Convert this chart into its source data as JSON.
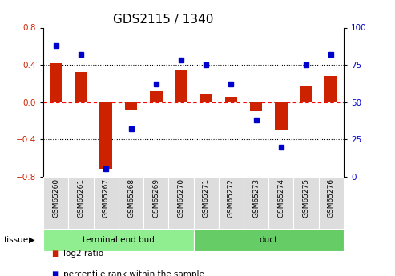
{
  "title": "GDS2115 / 1340",
  "samples": [
    "GSM65260",
    "GSM65261",
    "GSM65267",
    "GSM65268",
    "GSM65269",
    "GSM65270",
    "GSM65271",
    "GSM65272",
    "GSM65273",
    "GSM65274",
    "GSM65275",
    "GSM65276"
  ],
  "log2_ratio": [
    0.42,
    0.32,
    -0.72,
    -0.08,
    0.12,
    0.35,
    0.08,
    0.06,
    -0.1,
    -0.3,
    0.18,
    0.28
  ],
  "pct_rank": [
    88,
    82,
    5,
    32,
    62,
    78,
    75,
    62,
    38,
    20,
    75,
    82
  ],
  "tissue_groups": [
    {
      "label": "terminal end bud",
      "start": 0,
      "end": 6,
      "color": "#90EE90"
    },
    {
      "label": "duct",
      "start": 6,
      "end": 12,
      "color": "#66CC66"
    }
  ],
  "bar_color": "#CC2200",
  "dot_color": "#0000CC",
  "ylim_left": [
    -0.8,
    0.8
  ],
  "ylim_right": [
    0,
    100
  ],
  "yticks_left": [
    -0.8,
    -0.4,
    0.0,
    0.4,
    0.8
  ],
  "yticks_right": [
    0,
    25,
    50,
    75,
    100
  ],
  "hlines_dotted": [
    0.4,
    -0.4
  ],
  "hline_dashed": 0.0,
  "bar_width": 0.5,
  "background_color": "#ffffff",
  "left_label_color": "#CC2200",
  "right_label_color": "#0000CC",
  "tick_label_size": 7.5,
  "title_fontsize": 11,
  "sample_label_size": 6.5,
  "legend_items": [
    {
      "label": "log2 ratio",
      "color": "#CC2200"
    },
    {
      "label": "percentile rank within the sample",
      "color": "#0000CC"
    }
  ]
}
